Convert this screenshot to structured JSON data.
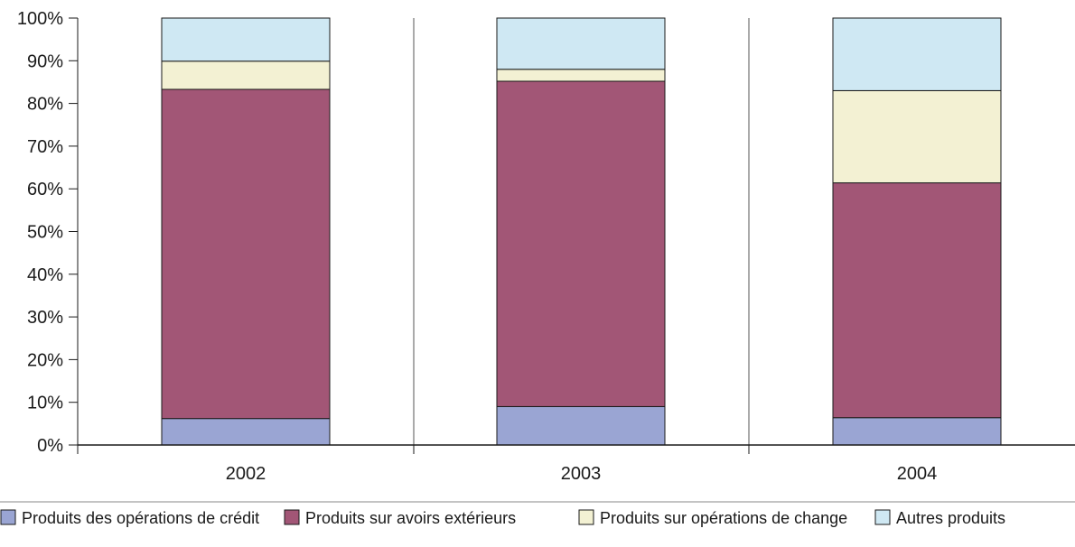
{
  "chart_data": {
    "type": "bar",
    "stacked": true,
    "normalized_percent": true,
    "categories": [
      "2002",
      "2003",
      "2004"
    ],
    "series": [
      {
        "name": "Produits des opérations de crédit",
        "color": "#9aa5d3",
        "values": [
          6.2,
          9.0,
          6.4
        ]
      },
      {
        "name": "Produits sur avoirs extérieurs",
        "color": "#a25676",
        "values": [
          77.1,
          76.2,
          55.0
        ]
      },
      {
        "name": "Produits sur opérations de change",
        "color": "#f3f1d3",
        "values": [
          6.6,
          2.8,
          21.6
        ]
      },
      {
        "name": "Autres produits",
        "color": "#cfe8f3",
        "values": [
          10.1,
          12.0,
          17.0
        ]
      }
    ],
    "yticks": [
      "0%",
      "10%",
      "20%",
      "30%",
      "40%",
      "50%",
      "60%",
      "70%",
      "80%",
      "90%",
      "100%"
    ],
    "ylim": [
      0,
      100
    ],
    "grid": false,
    "legend_position": "bottom"
  }
}
